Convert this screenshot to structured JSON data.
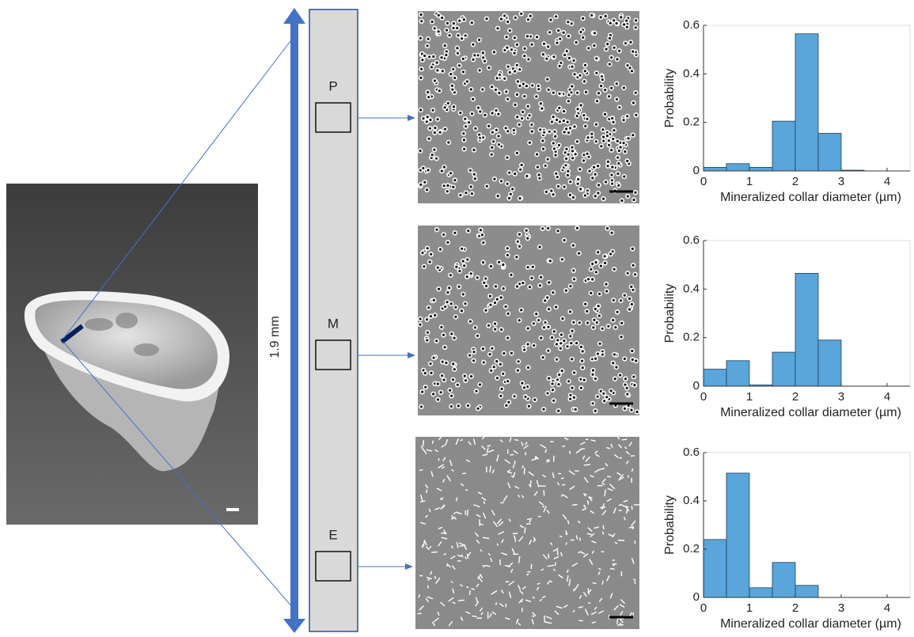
{
  "figure": {
    "scale_label": "1.9 mm",
    "regions": [
      "P",
      "M",
      "E"
    ]
  },
  "chart_data": [
    {
      "type": "histogram",
      "xlabel": "Mineralized collar diameter (µm)",
      "ylabel": "Probability",
      "color": "#5aa5d9",
      "bins": [
        0,
        0.5,
        1,
        1.5,
        2,
        2.5,
        3,
        3.5,
        4,
        4.5
      ],
      "values": [
        0.015,
        0.03,
        0.015,
        0.205,
        0.565,
        0.155,
        0.003,
        0,
        0
      ],
      "xlim": [
        0,
        4.5
      ],
      "xticks": [
        0,
        1,
        2,
        3,
        4
      ],
      "ylim": [
        0,
        0.6
      ],
      "yticks": [
        0,
        0.2,
        0.4,
        0.6
      ]
    },
    {
      "type": "histogram",
      "xlabel": "Mineralized collar diameter (µm)",
      "ylabel": "Probability",
      "color": "#5aa5d9",
      "bins": [
        0,
        0.5,
        1,
        1.5,
        2,
        2.5,
        3,
        3.5,
        4,
        4.5
      ],
      "values": [
        0.07,
        0.105,
        0.005,
        0.14,
        0.465,
        0.19,
        0,
        0,
        0
      ],
      "xlim": [
        0,
        4.5
      ],
      "xticks": [
        0,
        1,
        2,
        3,
        4
      ],
      "ylim": [
        0,
        0.6
      ],
      "yticks": [
        0,
        0.2,
        0.4,
        0.6
      ]
    },
    {
      "type": "histogram",
      "xlabel": "Mineralized collar diameter (µm)",
      "ylabel": "Probability",
      "color": "#5aa5d9",
      "bins": [
        0,
        0.5,
        1,
        1.5,
        2,
        2.5,
        3,
        3.5,
        4,
        4.5
      ],
      "values": [
        0.24,
        0.515,
        0.04,
        0.145,
        0.05,
        0,
        0,
        0,
        0
      ],
      "xlim": [
        0,
        4.5
      ],
      "xticks": [
        0,
        1,
        2,
        3,
        4
      ],
      "ylim": [
        0,
        0.6
      ],
      "yticks": [
        0,
        0.2,
        0.4,
        0.6
      ]
    }
  ]
}
